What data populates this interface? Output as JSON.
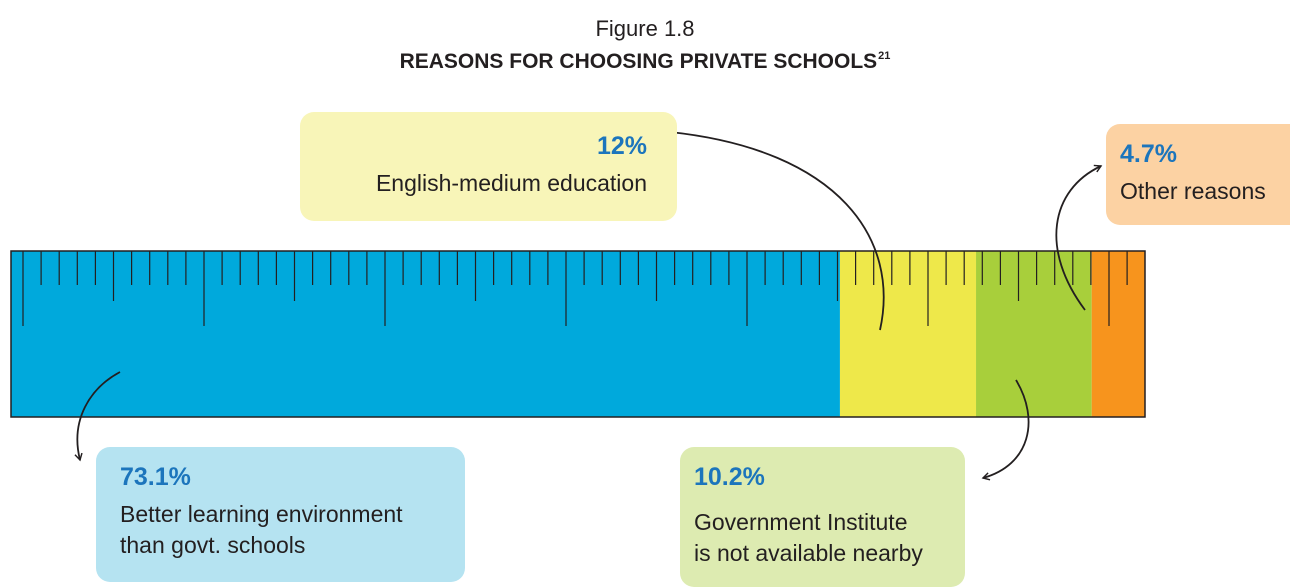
{
  "figure_label": "Figure 1.8",
  "title": "REASONS FOR CHOOSING PRIVATE SCHOOLS",
  "title_superscript": "21",
  "colors": {
    "better_learning": "#00a9dc",
    "english_medium": "#eee84a",
    "govt_not_available": "#a8cf3b",
    "other": "#f7941d",
    "pct_text": "#1c75bc",
    "box_blue": "#b5e3f1",
    "box_yellow": "#f8f5b8",
    "box_green": "#ddebb1",
    "box_orange": "#fcd2a3"
  },
  "callouts": {
    "english": {
      "pct": "12%",
      "text": "English-medium education"
    },
    "other": {
      "pct": "4.7%",
      "text": "Other reasons"
    },
    "better": {
      "pct": "73.1%",
      "text_line1": "Better learning environment",
      "text_line2": "than govt. schools"
    },
    "govt": {
      "pct": "10.2%",
      "text_line1": "Government Institute",
      "text_line2": "is not available nearby"
    }
  },
  "chart_data": {
    "type": "bar",
    "orientation": "horizontal-stacked",
    "unit": "%",
    "categories": [
      "Better learning environment than govt. schools",
      "English-medium education",
      "Government Institute is not available nearby",
      "Other reasons"
    ],
    "values": [
      73.1,
      12,
      10.2,
      4.7
    ],
    "title": "REASONS FOR CHOOSING PRIVATE SCHOOLS",
    "xlim": [
      0,
      100
    ]
  }
}
